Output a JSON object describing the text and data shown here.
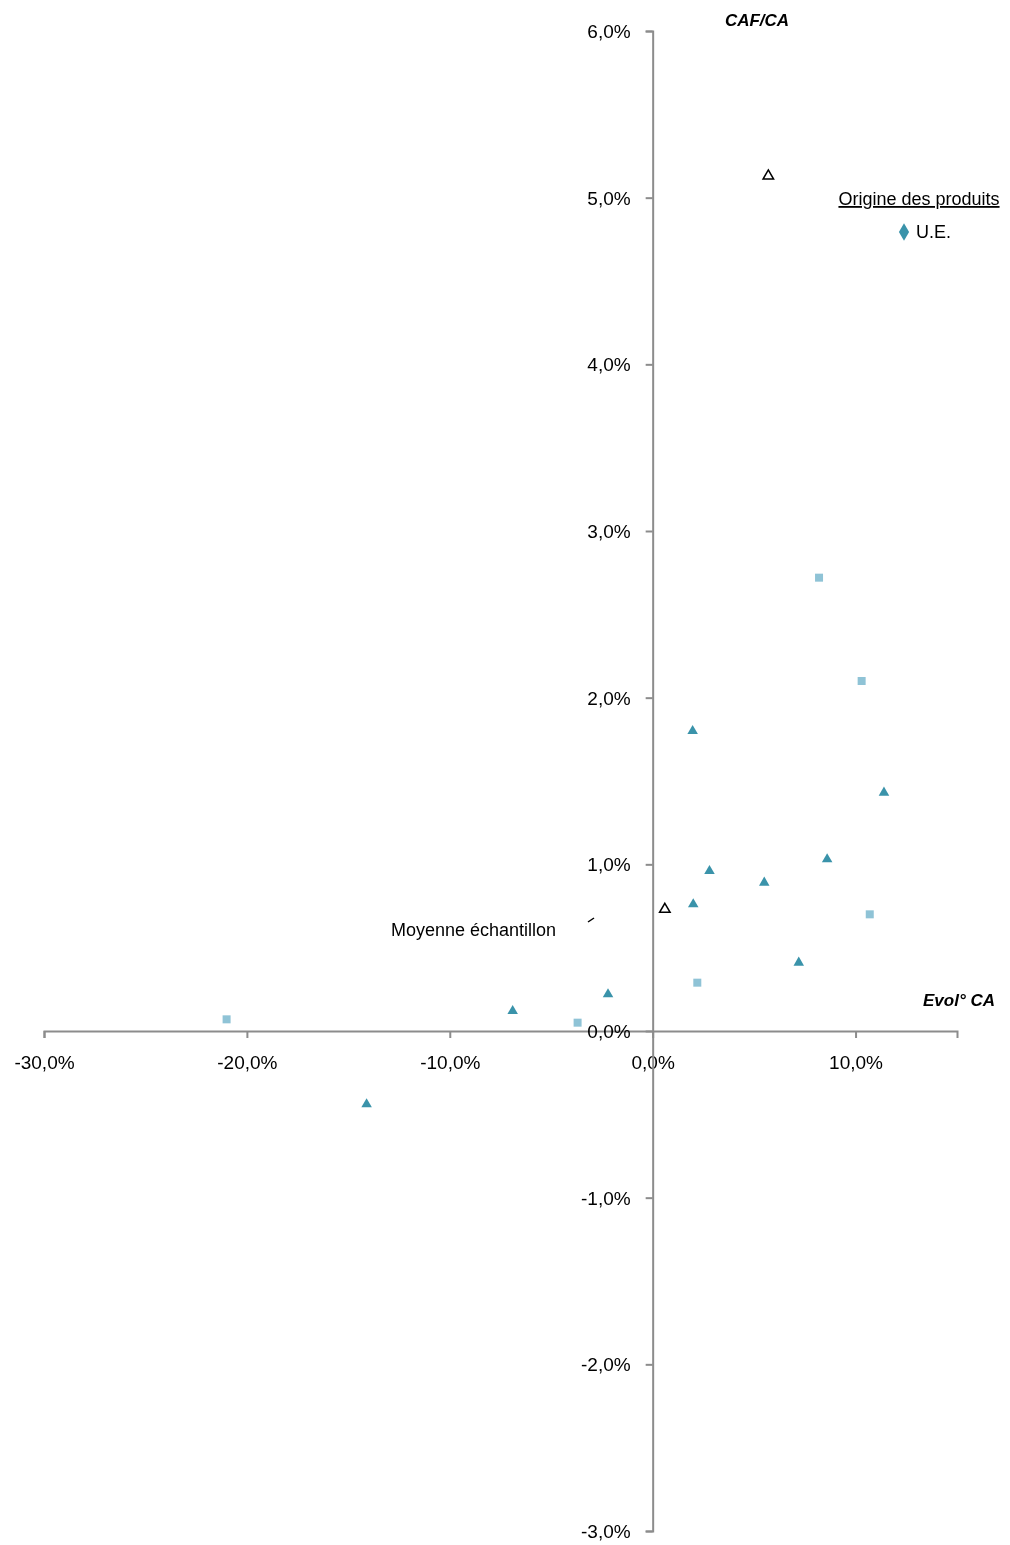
{
  "chart_data": {
    "type": "scatter",
    "xlabel": "Evol° CA",
    "ylabel": "CAF/CA",
    "legend_title": "Origine des produits",
    "xlim": [
      -30,
      15
    ],
    "xticks": [
      {
        "value": -30,
        "label": "-30,0%"
      },
      {
        "value": -20,
        "label": "-20,0%"
      },
      {
        "value": -10,
        "label": "-10,0%"
      },
      {
        "value": 0,
        "label": "0,0%"
      },
      {
        "value": 10,
        "label": "10,0%"
      }
    ],
    "ylim": [
      -3,
      6
    ],
    "yticks": [
      {
        "value": -3,
        "label": "-3,0%"
      },
      {
        "value": -2,
        "label": "-2,0%"
      },
      {
        "value": -1,
        "label": "-1,0%"
      },
      {
        "value": 0,
        "label": "0,0%"
      },
      {
        "value": 1,
        "label": "1,0%"
      },
      {
        "value": 2,
        "label": "2,0%"
      },
      {
        "value": 3,
        "label": "3,0%"
      },
      {
        "value": 4,
        "label": "4,0%"
      },
      {
        "value": 5,
        "label": "5,0%"
      },
      {
        "value": 6,
        "label": "6,0%"
      }
    ],
    "grid": false,
    "legend": "top right",
    "series": [
      {
        "name": "U.E.",
        "color": "#3a93aa",
        "marker": "triangle",
        "x": [
          1.97,
          11.4,
          2.8,
          8.6,
          5.5,
          2.0,
          7.2,
          -2.2,
          -6.9,
          -14.1
        ],
        "values": [
          1.8,
          1.43,
          0.96,
          1.03,
          0.89,
          0.76,
          0.41,
          0.22,
          0.12,
          -0.44
        ]
      },
      {
        "color": "#8fc3d6",
        "marker": "square",
        "x": [
          8.2,
          10.3,
          10.7,
          2.2,
          -3.7,
          -21.0
        ],
        "values": [
          2.72,
          2.1,
          0.7,
          0.29,
          0.05,
          0.07
        ]
      },
      {
        "color": "#000000",
        "marker": "triangle",
        "x": [
          0.6,
          5.7
        ],
        "values": [
          0.73,
          5.13
        ]
      }
    ],
    "annotations": [
      "Moyenne échantillon"
    ]
  }
}
